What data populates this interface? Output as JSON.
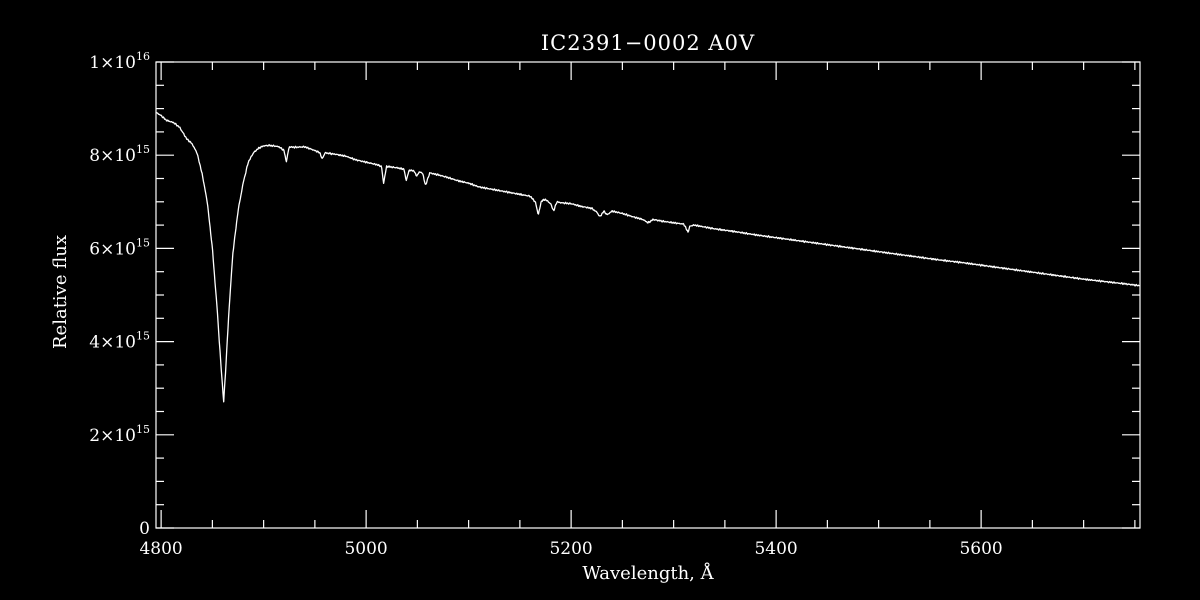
{
  "chart_data": {
    "type": "line",
    "title": "IC2391−0002  A0V",
    "xlabel": "Wavelength, Å",
    "ylabel": "Relative flux",
    "xlim": [
      4795,
      5755
    ],
    "ylim": [
      0,
      1e+16
    ],
    "xticks": [
      4800,
      5000,
      5200,
      5400,
      5600
    ],
    "xtick_labels": [
      "4800",
      "5000",
      "5200",
      "5400",
      "5600"
    ],
    "yticks": [
      0,
      2000000000000000.0,
      4000000000000000.0,
      6000000000000000.0,
      8000000000000000.0,
      1e+16
    ],
    "ytick_labels": [
      {
        "mantissa": "0",
        "exponent": ""
      },
      {
        "mantissa": "2×10",
        "exponent": "15"
      },
      {
        "mantissa": "4×10",
        "exponent": "15"
      },
      {
        "mantissa": "6×10",
        "exponent": "15"
      },
      {
        "mantissa": "8×10",
        "exponent": "15"
      },
      {
        "mantissa": "1×10",
        "exponent": "16"
      }
    ],
    "grid": false,
    "colors": {
      "background": "#000000",
      "foreground": "#ffffff"
    },
    "series": [
      {
        "x": [
          4795,
          4800,
          4805,
          4812,
          4818,
          4825,
          4830,
          4835,
          4840,
          4845,
          4850,
          4855,
          4858,
          4861,
          4863,
          4866,
          4870,
          4875,
          4880,
          4885,
          4890,
          4895,
          4900,
          4905,
          4910,
          4915,
          4920,
          4922,
          4925,
          4930,
          4940,
          4950,
          4955,
          4957,
          4960,
          4970,
          4980,
          4990,
          5000,
          5010,
          5015,
          5017,
          5020,
          5030,
          5037,
          5039,
          5042,
          5047,
          5049,
          5052,
          5055,
          5058,
          5062,
          5070,
          5080,
          5090,
          5100,
          5110,
          5120,
          5130,
          5140,
          5150,
          5160,
          5165,
          5168,
          5171,
          5175,
          5180,
          5183,
          5186,
          5190,
          5200,
          5210,
          5220,
          5225,
          5228,
          5232,
          5235,
          5240,
          5250,
          5260,
          5270,
          5275,
          5280,
          5290,
          5300,
          5310,
          5314,
          5316,
          5320,
          5330,
          5340,
          5360,
          5380,
          5400,
          5420,
          5440,
          5460,
          5480,
          5500,
          5520,
          5540,
          5560,
          5580,
          5600,
          5620,
          5640,
          5660,
          5680,
          5700,
          5720,
          5740,
          5755
        ],
        "y": [
          8920000000000000.0,
          8850000000000000.0,
          8750000000000000.0,
          8700000000000000.0,
          8600000000000000.0,
          8350000000000000.0,
          8250000000000000.0,
          8050000000000000.0,
          7600000000000000.0,
          7000000000000000.0,
          6000000000000000.0,
          4600000000000000.0,
          3600000000000000.0,
          2720000000000000.0,
          3400000000000000.0,
          4600000000000000.0,
          5900000000000000.0,
          6800000000000000.0,
          7400000000000000.0,
          7850000000000000.0,
          8050000000000000.0,
          8150000000000000.0,
          8200000000000000.0,
          8210000000000000.0,
          8200000000000000.0,
          8180000000000000.0,
          8100000000000000.0,
          7850000000000000.0,
          8180000000000000.0,
          8170000000000000.0,
          8180000000000000.0,
          8100000000000000.0,
          8050000000000000.0,
          7920000000000000.0,
          8050000000000000.0,
          8020000000000000.0,
          7980000000000000.0,
          7900000000000000.0,
          7850000000000000.0,
          7800000000000000.0,
          7760000000000000.0,
          7400000000000000.0,
          7760000000000000.0,
          7730000000000000.0,
          7700000000000000.0,
          7450000000000000.0,
          7680000000000000.0,
          7660000000000000.0,
          7550000000000000.0,
          7640000000000000.0,
          7620000000000000.0,
          7350000000000000.0,
          7620000000000000.0,
          7580000000000000.0,
          7520000000000000.0,
          7450000000000000.0,
          7400000000000000.0,
          7320000000000000.0,
          7280000000000000.0,
          7240000000000000.0,
          7200000000000000.0,
          7160000000000000.0,
          7120000000000000.0,
          7000000000000000.0,
          6720000000000000.0,
          7020000000000000.0,
          7050000000000000.0,
          6960000000000000.0,
          6800000000000000.0,
          7000000000000000.0,
          6980000000000000.0,
          6960000000000000.0,
          6900000000000000.0,
          6860000000000000.0,
          6780000000000000.0,
          6680000000000000.0,
          6800000000000000.0,
          6720000000000000.0,
          6800000000000000.0,
          6750000000000000.0,
          6680000000000000.0,
          6620000000000000.0,
          6550000000000000.0,
          6620000000000000.0,
          6580000000000000.0,
          6550000000000000.0,
          6520000000000000.0,
          6350000000000000.0,
          6480000000000000.0,
          6500000000000000.0,
          6460000000000000.0,
          6420000000000000.0,
          6360000000000000.0,
          6290000000000000.0,
          6230000000000000.0,
          6170000000000000.0,
          6110000000000000.0,
          6050000000000000.0,
          5990000000000000.0,
          5930000000000000.0,
          5870000000000000.0,
          5810000000000000.0,
          5750000000000000.0,
          5700000000000000.0,
          5640000000000000.0,
          5580000000000000.0,
          5520000000000000.0,
          5460000000000000.0,
          5400000000000000.0,
          5340000000000000.0,
          5290000000000000.0,
          5240000000000000.0,
          5200000000000000.0
        ]
      }
    ]
  }
}
